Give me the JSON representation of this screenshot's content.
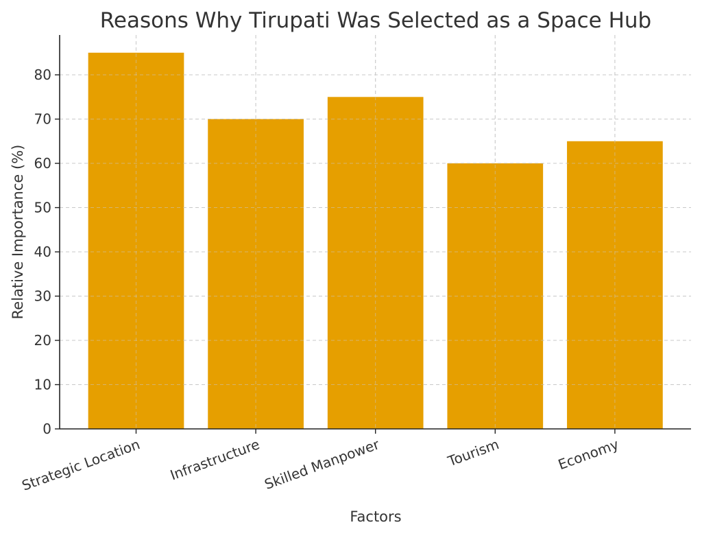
{
  "chart_data": {
    "type": "bar",
    "title": "Reasons Why Tirupati Was Selected as a Space Hub",
    "xlabel": "Factors",
    "ylabel": "Relative Importance (%)",
    "categories": [
      "Strategic Location",
      "Infrastructure",
      "Skilled Manpower",
      "Tourism",
      "Economy"
    ],
    "values": [
      85,
      70,
      75,
      60,
      65
    ],
    "ylim": [
      0,
      89
    ],
    "yticks": [
      0,
      10,
      20,
      30,
      40,
      50,
      60,
      70,
      80
    ],
    "grid": true,
    "bar_color": "#E69F00",
    "xtick_rotation": -20
  }
}
